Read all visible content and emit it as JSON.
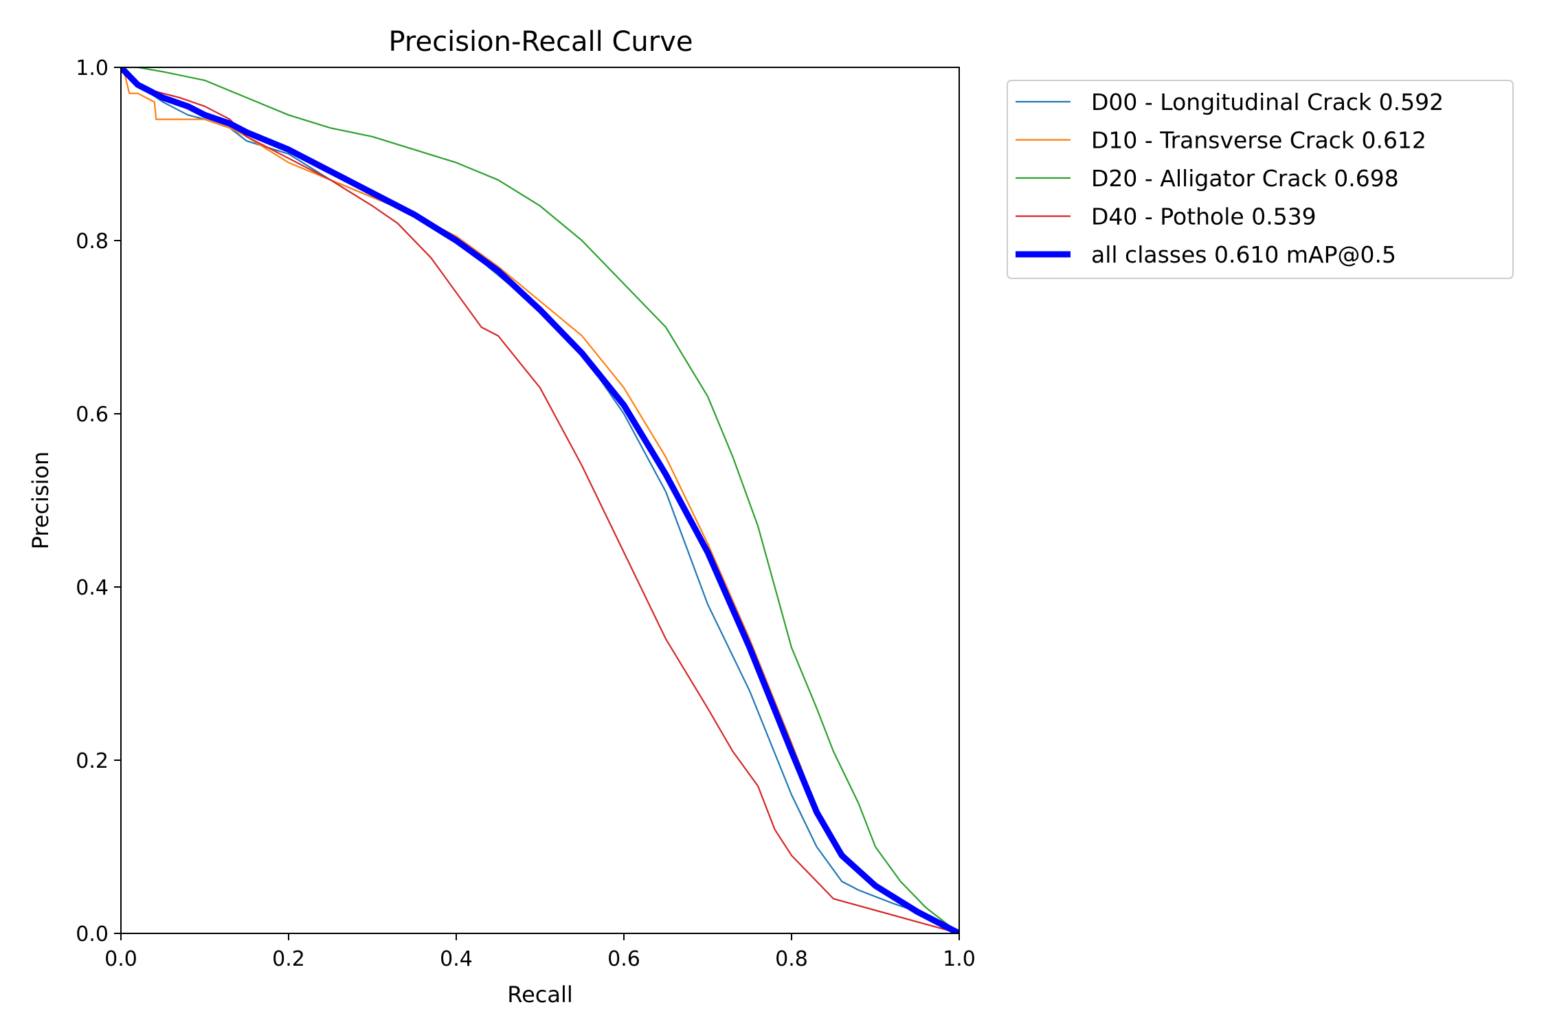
{
  "chart_data": {
    "type": "line",
    "title": "Precision-Recall Curve",
    "xlabel": "Recall",
    "ylabel": "Precision",
    "xlim": [
      0,
      1
    ],
    "ylim": [
      0,
      1
    ],
    "xticks": [
      "0.0",
      "0.2",
      "0.4",
      "0.6",
      "0.8",
      "1.0"
    ],
    "yticks": [
      "0.0",
      "0.2",
      "0.4",
      "0.6",
      "0.8",
      "1.0"
    ],
    "grid": false,
    "legend_position": "outside-top-right",
    "series": [
      {
        "name": "D00 - Longitudinal Crack 0.592",
        "color": "#1f77b4",
        "x": [
          0,
          0.02,
          0.05,
          0.08,
          0.1,
          0.13,
          0.15,
          0.2,
          0.25,
          0.3,
          0.35,
          0.4,
          0.45,
          0.5,
          0.55,
          0.6,
          0.65,
          0.7,
          0.75,
          0.8,
          0.83,
          0.86,
          0.88,
          0.92,
          0.95,
          1.0
        ],
        "y": [
          1.0,
          0.98,
          0.96,
          0.945,
          0.94,
          0.93,
          0.915,
          0.9,
          0.87,
          0.85,
          0.83,
          0.8,
          0.76,
          0.72,
          0.67,
          0.6,
          0.51,
          0.38,
          0.28,
          0.16,
          0.1,
          0.06,
          0.05,
          0.035,
          0.025,
          0.0
        ]
      },
      {
        "name": "D10 - Transverse Crack 0.612",
        "color": "#ff7f0e",
        "x": [
          0,
          0.005,
          0.01,
          0.02,
          0.03,
          0.04,
          0.042,
          0.05,
          0.1,
          0.13,
          0.15,
          0.2,
          0.25,
          0.3,
          0.35,
          0.4,
          0.45,
          0.5,
          0.55,
          0.6,
          0.65,
          0.7,
          0.75,
          0.8,
          0.84,
          0.88,
          0.92,
          0.96,
          1.0
        ],
        "y": [
          1.0,
          0.99,
          0.97,
          0.97,
          0.965,
          0.96,
          0.94,
          0.94,
          0.94,
          0.93,
          0.92,
          0.89,
          0.87,
          0.85,
          0.83,
          0.805,
          0.77,
          0.73,
          0.69,
          0.63,
          0.55,
          0.45,
          0.34,
          0.22,
          0.12,
          0.07,
          0.04,
          0.02,
          0.0
        ]
      },
      {
        "name": "D20 - Alligator Crack 0.698",
        "color": "#2ca02c",
        "x": [
          0,
          0.02,
          0.05,
          0.1,
          0.15,
          0.2,
          0.25,
          0.3,
          0.35,
          0.4,
          0.45,
          0.5,
          0.55,
          0.6,
          0.65,
          0.7,
          0.73,
          0.76,
          0.78,
          0.8,
          0.83,
          0.85,
          0.88,
          0.9,
          0.93,
          0.96,
          1.0
        ],
        "y": [
          1.0,
          1.0,
          0.995,
          0.985,
          0.965,
          0.945,
          0.93,
          0.92,
          0.905,
          0.89,
          0.87,
          0.84,
          0.8,
          0.75,
          0.7,
          0.62,
          0.55,
          0.47,
          0.4,
          0.33,
          0.26,
          0.21,
          0.15,
          0.1,
          0.06,
          0.03,
          0.0
        ]
      },
      {
        "name": "D40 - Pothole 0.539",
        "color": "#d62728",
        "x": [
          0,
          0.02,
          0.03,
          0.05,
          0.07,
          0.1,
          0.13,
          0.15,
          0.2,
          0.25,
          0.3,
          0.33,
          0.37,
          0.4,
          0.43,
          0.45,
          0.5,
          0.55,
          0.6,
          0.65,
          0.7,
          0.73,
          0.76,
          0.78,
          0.8,
          0.83,
          0.85,
          1.0
        ],
        "y": [
          1.0,
          0.98,
          0.975,
          0.97,
          0.965,
          0.955,
          0.94,
          0.92,
          0.895,
          0.87,
          0.84,
          0.82,
          0.78,
          0.74,
          0.7,
          0.69,
          0.63,
          0.54,
          0.44,
          0.34,
          0.26,
          0.21,
          0.17,
          0.12,
          0.09,
          0.06,
          0.04,
          0.0
        ]
      },
      {
        "name": "all classes 0.610 mAP@0.5",
        "color": "#0000ff",
        "x": [
          0,
          0.02,
          0.05,
          0.08,
          0.1,
          0.13,
          0.15,
          0.2,
          0.25,
          0.3,
          0.35,
          0.4,
          0.45,
          0.5,
          0.55,
          0.6,
          0.65,
          0.7,
          0.75,
          0.8,
          0.83,
          0.86,
          0.9,
          0.95,
          1.0
        ],
        "y": [
          1.0,
          0.98,
          0.965,
          0.955,
          0.945,
          0.935,
          0.925,
          0.905,
          0.88,
          0.855,
          0.83,
          0.8,
          0.765,
          0.72,
          0.67,
          0.61,
          0.53,
          0.44,
          0.33,
          0.21,
          0.14,
          0.09,
          0.055,
          0.025,
          0.0
        ]
      }
    ]
  }
}
